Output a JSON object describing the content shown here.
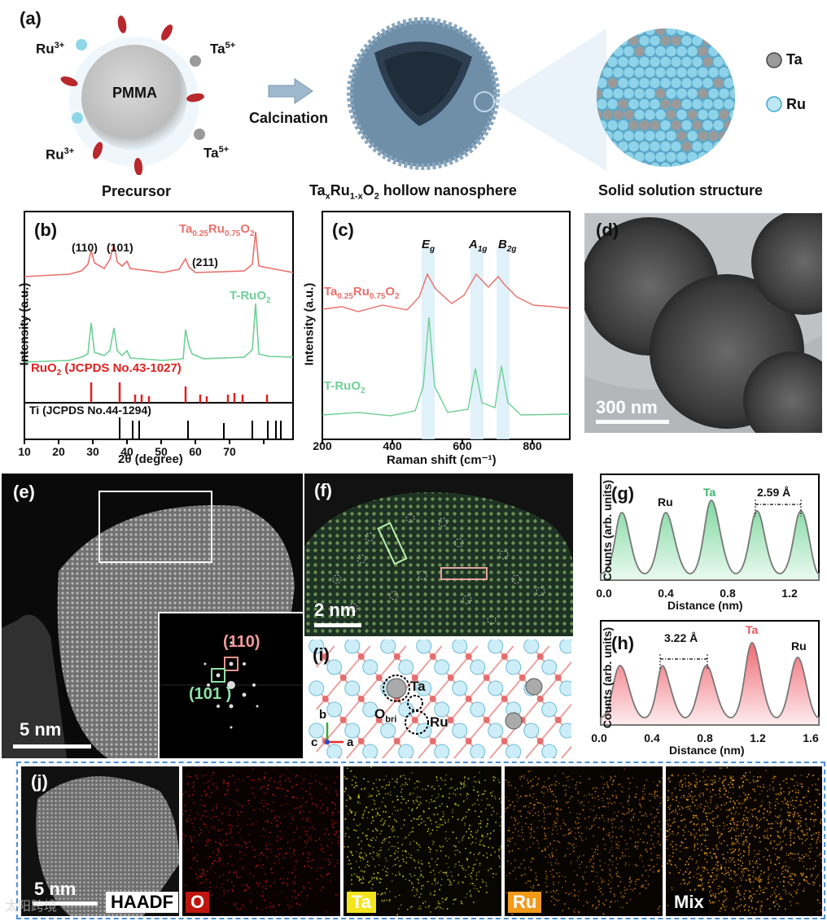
{
  "panel_a": {
    "label": "(a)",
    "core": "PMMA",
    "ions": [
      "Ru",
      "3+",
      "Ta",
      "5+"
    ],
    "arrow_text": "Calcination",
    "caption_precursor": "Precursor",
    "caption_hollow": "hollow nanosphere",
    "caption_solid": "Solid solution structure",
    "legend": [
      "Ta",
      "Ru"
    ],
    "colors": {
      "ta": "#9a9a9a",
      "ru": "#7fd0ea",
      "shell": "#5f7f9a",
      "ion_red": "#b8282c",
      "ion_blue": "#8fd6e6"
    }
  },
  "panel_b": {
    "label": "(b)",
    "ylabel": "Intensity (a.u.)",
    "xlabel": "2θ (degree)",
    "xticks": [
      "10",
      "20",
      "30",
      "40",
      "50",
      "60",
      "70"
    ],
    "peaks": [
      "(110)",
      "(101)",
      "(211)"
    ],
    "sample1": "Ta0.25Ru0.75O2",
    "sample2": "T-RuO2",
    "ref1": "RuO2 (JCPDS No.43-1027)",
    "ref2": "Ti (JCPDS No.44-1294)",
    "colors": {
      "s1": "#e8706b",
      "s2": "#6fcf97",
      "ref1": "#e02020",
      "ref2": "#000000"
    }
  },
  "panel_c": {
    "label": "(c)",
    "ylabel": "Intensity (a.u.)",
    "xlabel": "Raman shift (cm⁻¹)",
    "xticks": [
      "200",
      "400",
      "600",
      "800"
    ],
    "modes": [
      "E",
      "g",
      "A",
      "1g",
      "B",
      "2g"
    ],
    "sample1": "Ta0.25Ru0.75O2",
    "sample2": "T-RuO2"
  },
  "panel_d": {
    "label": "(d)",
    "scale": "300 nm"
  },
  "panel_e": {
    "label": "(e)",
    "scale": "5 nm",
    "fft_labels": [
      "(110)",
      "(101 )"
    ]
  },
  "panel_f": {
    "label": "(f)",
    "scale": "2 nm"
  },
  "panel_g": {
    "label": "(g)",
    "ylabel": "Counts (arb. units)",
    "xlabel": "Distance (nm)",
    "xticks": [
      "0.0",
      "0.4",
      "0.8",
      "1.2"
    ],
    "atoms": [
      "Ru",
      "Ta"
    ],
    "spacing": "2.59 Å"
  },
  "panel_h": {
    "label": "(h)",
    "ylabel": "Counts (arb. units)",
    "xlabel": "Distance (nm)",
    "xticks": [
      "0.0",
      "0.4",
      "0.8",
      "1.2",
      "1.6"
    ],
    "atoms": [
      "Ta",
      "Ru"
    ],
    "spacing": "3.22 Å"
  },
  "panel_i": {
    "label": "(i)",
    "atoms": [
      "Ta",
      "O",
      "bri",
      "Ru"
    ],
    "axes": [
      "b",
      "c",
      "a"
    ]
  },
  "panel_j": {
    "label": "(j)",
    "scale": "5 nm",
    "maps": [
      "HAADF",
      "O",
      "Ta",
      "Ru",
      "Mix"
    ],
    "map_colors": [
      "#000000",
      "#c0150f",
      "#f4e41c",
      "#f19a1a",
      "#000000"
    ]
  },
  "watermark": "太阳跨境"
}
